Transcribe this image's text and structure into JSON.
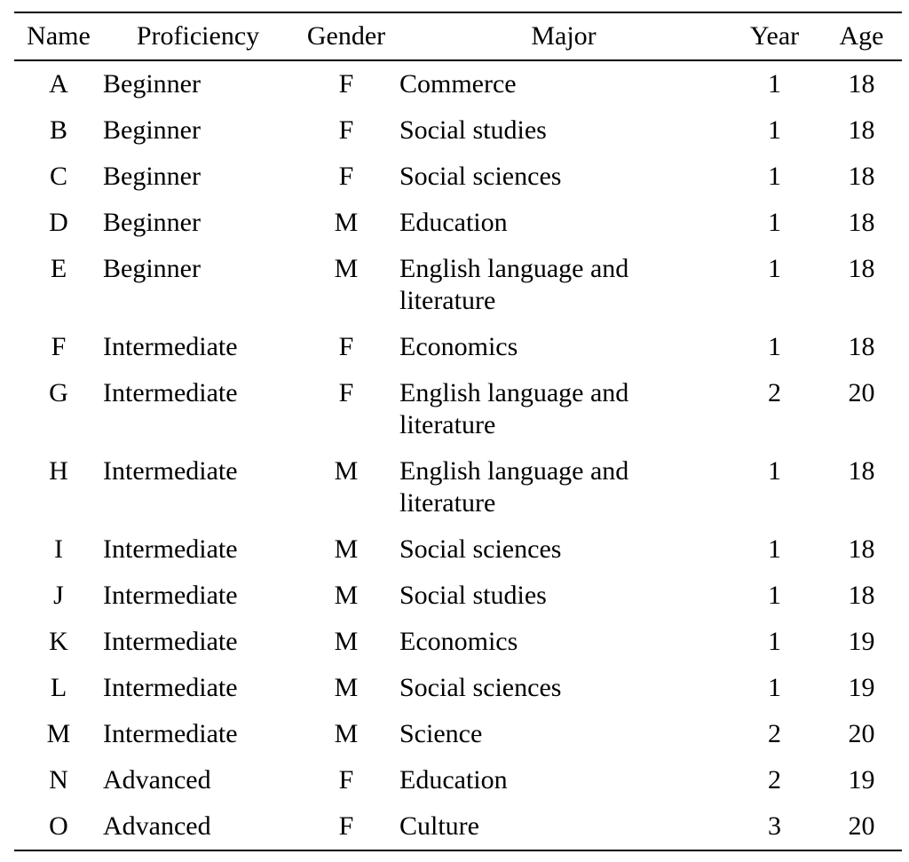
{
  "colors": {
    "text": "#000000",
    "rule": "#000000",
    "background": "#ffffff"
  },
  "table": {
    "columns": [
      {
        "key": "name",
        "label": "Name",
        "align": "center"
      },
      {
        "key": "proficiency",
        "label": "Proficiency",
        "align": "left"
      },
      {
        "key": "gender",
        "label": "Gender",
        "align": "center"
      },
      {
        "key": "major",
        "label": "Major",
        "align": "left"
      },
      {
        "key": "year",
        "label": "Year",
        "align": "center"
      },
      {
        "key": "age",
        "label": "Age",
        "align": "center"
      }
    ],
    "rows": [
      [
        "A",
        "Beginner",
        "F",
        "Commerce",
        "1",
        "18"
      ],
      [
        "B",
        "Beginner",
        "F",
        "Social studies",
        "1",
        "18"
      ],
      [
        "C",
        "Beginner",
        "F",
        "Social sciences",
        "1",
        "18"
      ],
      [
        "D",
        "Beginner",
        "M",
        "Education",
        "1",
        "18"
      ],
      [
        "E",
        "Beginner",
        "M",
        "English language and literature",
        "1",
        "18"
      ],
      [
        "F",
        "Intermediate",
        "F",
        "Economics",
        "1",
        "18"
      ],
      [
        "G",
        "Intermediate",
        "F",
        "English language and literature",
        "2",
        "20"
      ],
      [
        "H",
        "Intermediate",
        "M",
        "English language and literature",
        "1",
        "18"
      ],
      [
        "I",
        "Intermediate",
        "M",
        "Social sciences",
        "1",
        "18"
      ],
      [
        "J",
        "Intermediate",
        "M",
        "Social studies",
        "1",
        "18"
      ],
      [
        "K",
        "Intermediate",
        "M",
        "Economics",
        "1",
        "19"
      ],
      [
        "L",
        "Intermediate",
        "M",
        "Social sciences",
        "1",
        "19"
      ],
      [
        "M",
        "Intermediate",
        "M",
        "Science",
        "2",
        "20"
      ],
      [
        "N",
        "Advanced",
        "F",
        "Education",
        "2",
        "19"
      ],
      [
        "O",
        "Advanced",
        "F",
        "Culture",
        "3",
        "20"
      ]
    ]
  }
}
